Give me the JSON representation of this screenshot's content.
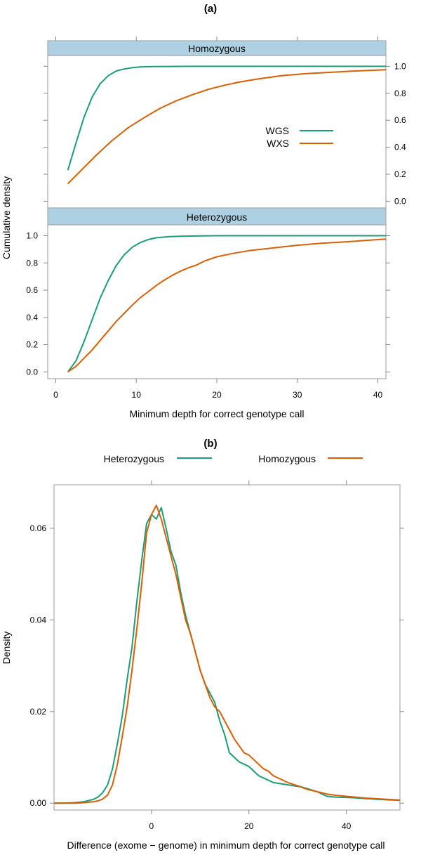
{
  "chart_data": [
    {
      "type": "line",
      "panel_label": "(a)",
      "xlabel": "Minimum depth for correct genotype call",
      "ylabel": "Cumulative density",
      "xlim": [
        -1,
        41
      ],
      "ylim": [
        -0.05,
        1.08
      ],
      "x_ticks": [
        0,
        10,
        20,
        30,
        40
      ],
      "y_ticks": [
        0.0,
        0.2,
        0.4,
        0.6,
        0.8,
        1.0
      ],
      "y_tick_labels": [
        "0.0",
        "0.2",
        "0.4",
        "0.6",
        "0.8",
        "1.0"
      ],
      "legend": {
        "position": "inside-right (top panel)",
        "entries": [
          "WGS",
          "WXS"
        ]
      },
      "colors": {
        "WGS": "#1b9e77",
        "WXS": "#d95f02"
      },
      "panels": [
        {
          "strip": "Homozygous",
          "series": [
            {
              "name": "WGS",
              "x": [
                1.5,
                2.5,
                3.5,
                4.5,
                5.5,
                6.5,
                7.5,
                8.5,
                9.5,
                10.5,
                12,
                14,
                17,
                20,
                25,
                30,
                35,
                41
              ],
              "y": [
                0.23,
                0.43,
                0.62,
                0.77,
                0.87,
                0.93,
                0.965,
                0.98,
                0.99,
                0.995,
                0.998,
                0.999,
                1.0,
                1.0,
                1.0,
                1.0,
                1.0,
                1.0
              ]
            },
            {
              "name": "WXS",
              "x": [
                1.5,
                3,
                5,
                7,
                9,
                11,
                13,
                15,
                17,
                19,
                21,
                23,
                25,
                28,
                31,
                34,
                37,
                41
              ],
              "y": [
                0.13,
                0.22,
                0.34,
                0.45,
                0.545,
                0.62,
                0.69,
                0.745,
                0.79,
                0.83,
                0.86,
                0.885,
                0.905,
                0.93,
                0.945,
                0.955,
                0.965,
                0.975
              ]
            }
          ]
        },
        {
          "strip": "Heterozygous",
          "series": [
            {
              "name": "WGS",
              "x": [
                1.5,
                2.5,
                3.5,
                4.5,
                5.5,
                6.5,
                7.5,
                8.5,
                9.5,
                10.5,
                11.5,
                12.5,
                14,
                16,
                18,
                20,
                25,
                30,
                35,
                41
              ],
              "y": [
                0.0,
                0.08,
                0.22,
                0.38,
                0.54,
                0.67,
                0.78,
                0.86,
                0.915,
                0.95,
                0.972,
                0.985,
                0.993,
                0.997,
                0.999,
                1.0,
                1.0,
                1.0,
                1.0,
                1.0
              ]
            },
            {
              "name": "WXS",
              "x": [
                1.5,
                2.5,
                3.5,
                4.5,
                5.5,
                6.5,
                7.5,
                8.5,
                9.5,
                10.5,
                11.5,
                12.5,
                13.5,
                14.5,
                15.5,
                16.5,
                17.5,
                18.5,
                20,
                22,
                24,
                27,
                30,
                33,
                36,
                41
              ],
              "y": [
                0.0,
                0.04,
                0.1,
                0.16,
                0.23,
                0.3,
                0.37,
                0.43,
                0.49,
                0.545,
                0.59,
                0.635,
                0.675,
                0.71,
                0.74,
                0.765,
                0.785,
                0.815,
                0.845,
                0.87,
                0.89,
                0.91,
                0.93,
                0.945,
                0.955,
                0.975
              ]
            }
          ]
        }
      ]
    },
    {
      "type": "line",
      "panel_label": "(b)",
      "xlabel": "Difference (exome − genome) in minimum depth for correct genotype call",
      "ylabel": "Density",
      "xlim": [
        -20,
        51
      ],
      "ylim": [
        -0.0015,
        0.0695
      ],
      "x_ticks": [
        0,
        20,
        40
      ],
      "y_ticks": [
        0.0,
        0.02,
        0.04,
        0.06
      ],
      "y_tick_labels": [
        "0.00",
        "0.02",
        "0.04",
        "0.06"
      ],
      "legend": {
        "position": "top",
        "entries": [
          "Heterozygous",
          "Homozygous"
        ]
      },
      "colors": {
        "Heterozygous": "#1b9e77",
        "Homozygous": "#d95f02"
      },
      "series": [
        {
          "name": "Heterozygous",
          "x": [
            -20,
            -16,
            -14,
            -12,
            -11,
            -10,
            -9,
            -8,
            -7,
            -6,
            -5,
            -4,
            -3,
            -2,
            -1,
            0,
            1,
            2,
            3,
            4,
            5,
            6,
            7,
            8,
            9,
            10,
            11,
            12,
            13,
            14,
            15,
            16,
            17,
            18,
            19,
            20,
            22,
            25,
            28,
            31,
            34,
            36,
            38,
            41,
            44,
            47,
            51
          ],
          "y": [
            0.0,
            0.0001,
            0.0003,
            0.0008,
            0.0013,
            0.0023,
            0.004,
            0.0075,
            0.013,
            0.019,
            0.027,
            0.034,
            0.044,
            0.053,
            0.061,
            0.063,
            0.062,
            0.0645,
            0.06,
            0.055,
            0.052,
            0.046,
            0.041,
            0.037,
            0.033,
            0.029,
            0.026,
            0.024,
            0.022,
            0.018,
            0.015,
            0.011,
            0.01,
            0.009,
            0.0085,
            0.008,
            0.006,
            0.0045,
            0.004,
            0.0035,
            0.0025,
            0.0015,
            0.0013,
            0.0012,
            0.001,
            0.0008,
            0.0006
          ]
        },
        {
          "name": "Homozygous",
          "x": [
            -20,
            -16,
            -14,
            -12,
            -11,
            -10,
            -9,
            -8,
            -7,
            -6,
            -5,
            -4,
            -3,
            -2,
            -1,
            0,
            1,
            2,
            3,
            4,
            5,
            6,
            7,
            8,
            9,
            10,
            11,
            12,
            13,
            14,
            15,
            16,
            17,
            18,
            19,
            20,
            21,
            22,
            23,
            24,
            25,
            26,
            27,
            28,
            30,
            32,
            34,
            36,
            38,
            41,
            44,
            47,
            51
          ],
          "y": [
            0.0,
            0.0,
            0.0001,
            0.0003,
            0.0005,
            0.0009,
            0.0018,
            0.004,
            0.0085,
            0.0145,
            0.021,
            0.029,
            0.038,
            0.048,
            0.059,
            0.063,
            0.065,
            0.062,
            0.058,
            0.054,
            0.05,
            0.045,
            0.04,
            0.037,
            0.033,
            0.029,
            0.026,
            0.023,
            0.021,
            0.02,
            0.018,
            0.016,
            0.014,
            0.0125,
            0.011,
            0.0105,
            0.0095,
            0.0085,
            0.0075,
            0.007,
            0.006,
            0.0055,
            0.005,
            0.0045,
            0.0038,
            0.003,
            0.0025,
            0.002,
            0.0017,
            0.0014,
            0.0011,
            0.0009,
            0.0007
          ]
        }
      ]
    }
  ]
}
